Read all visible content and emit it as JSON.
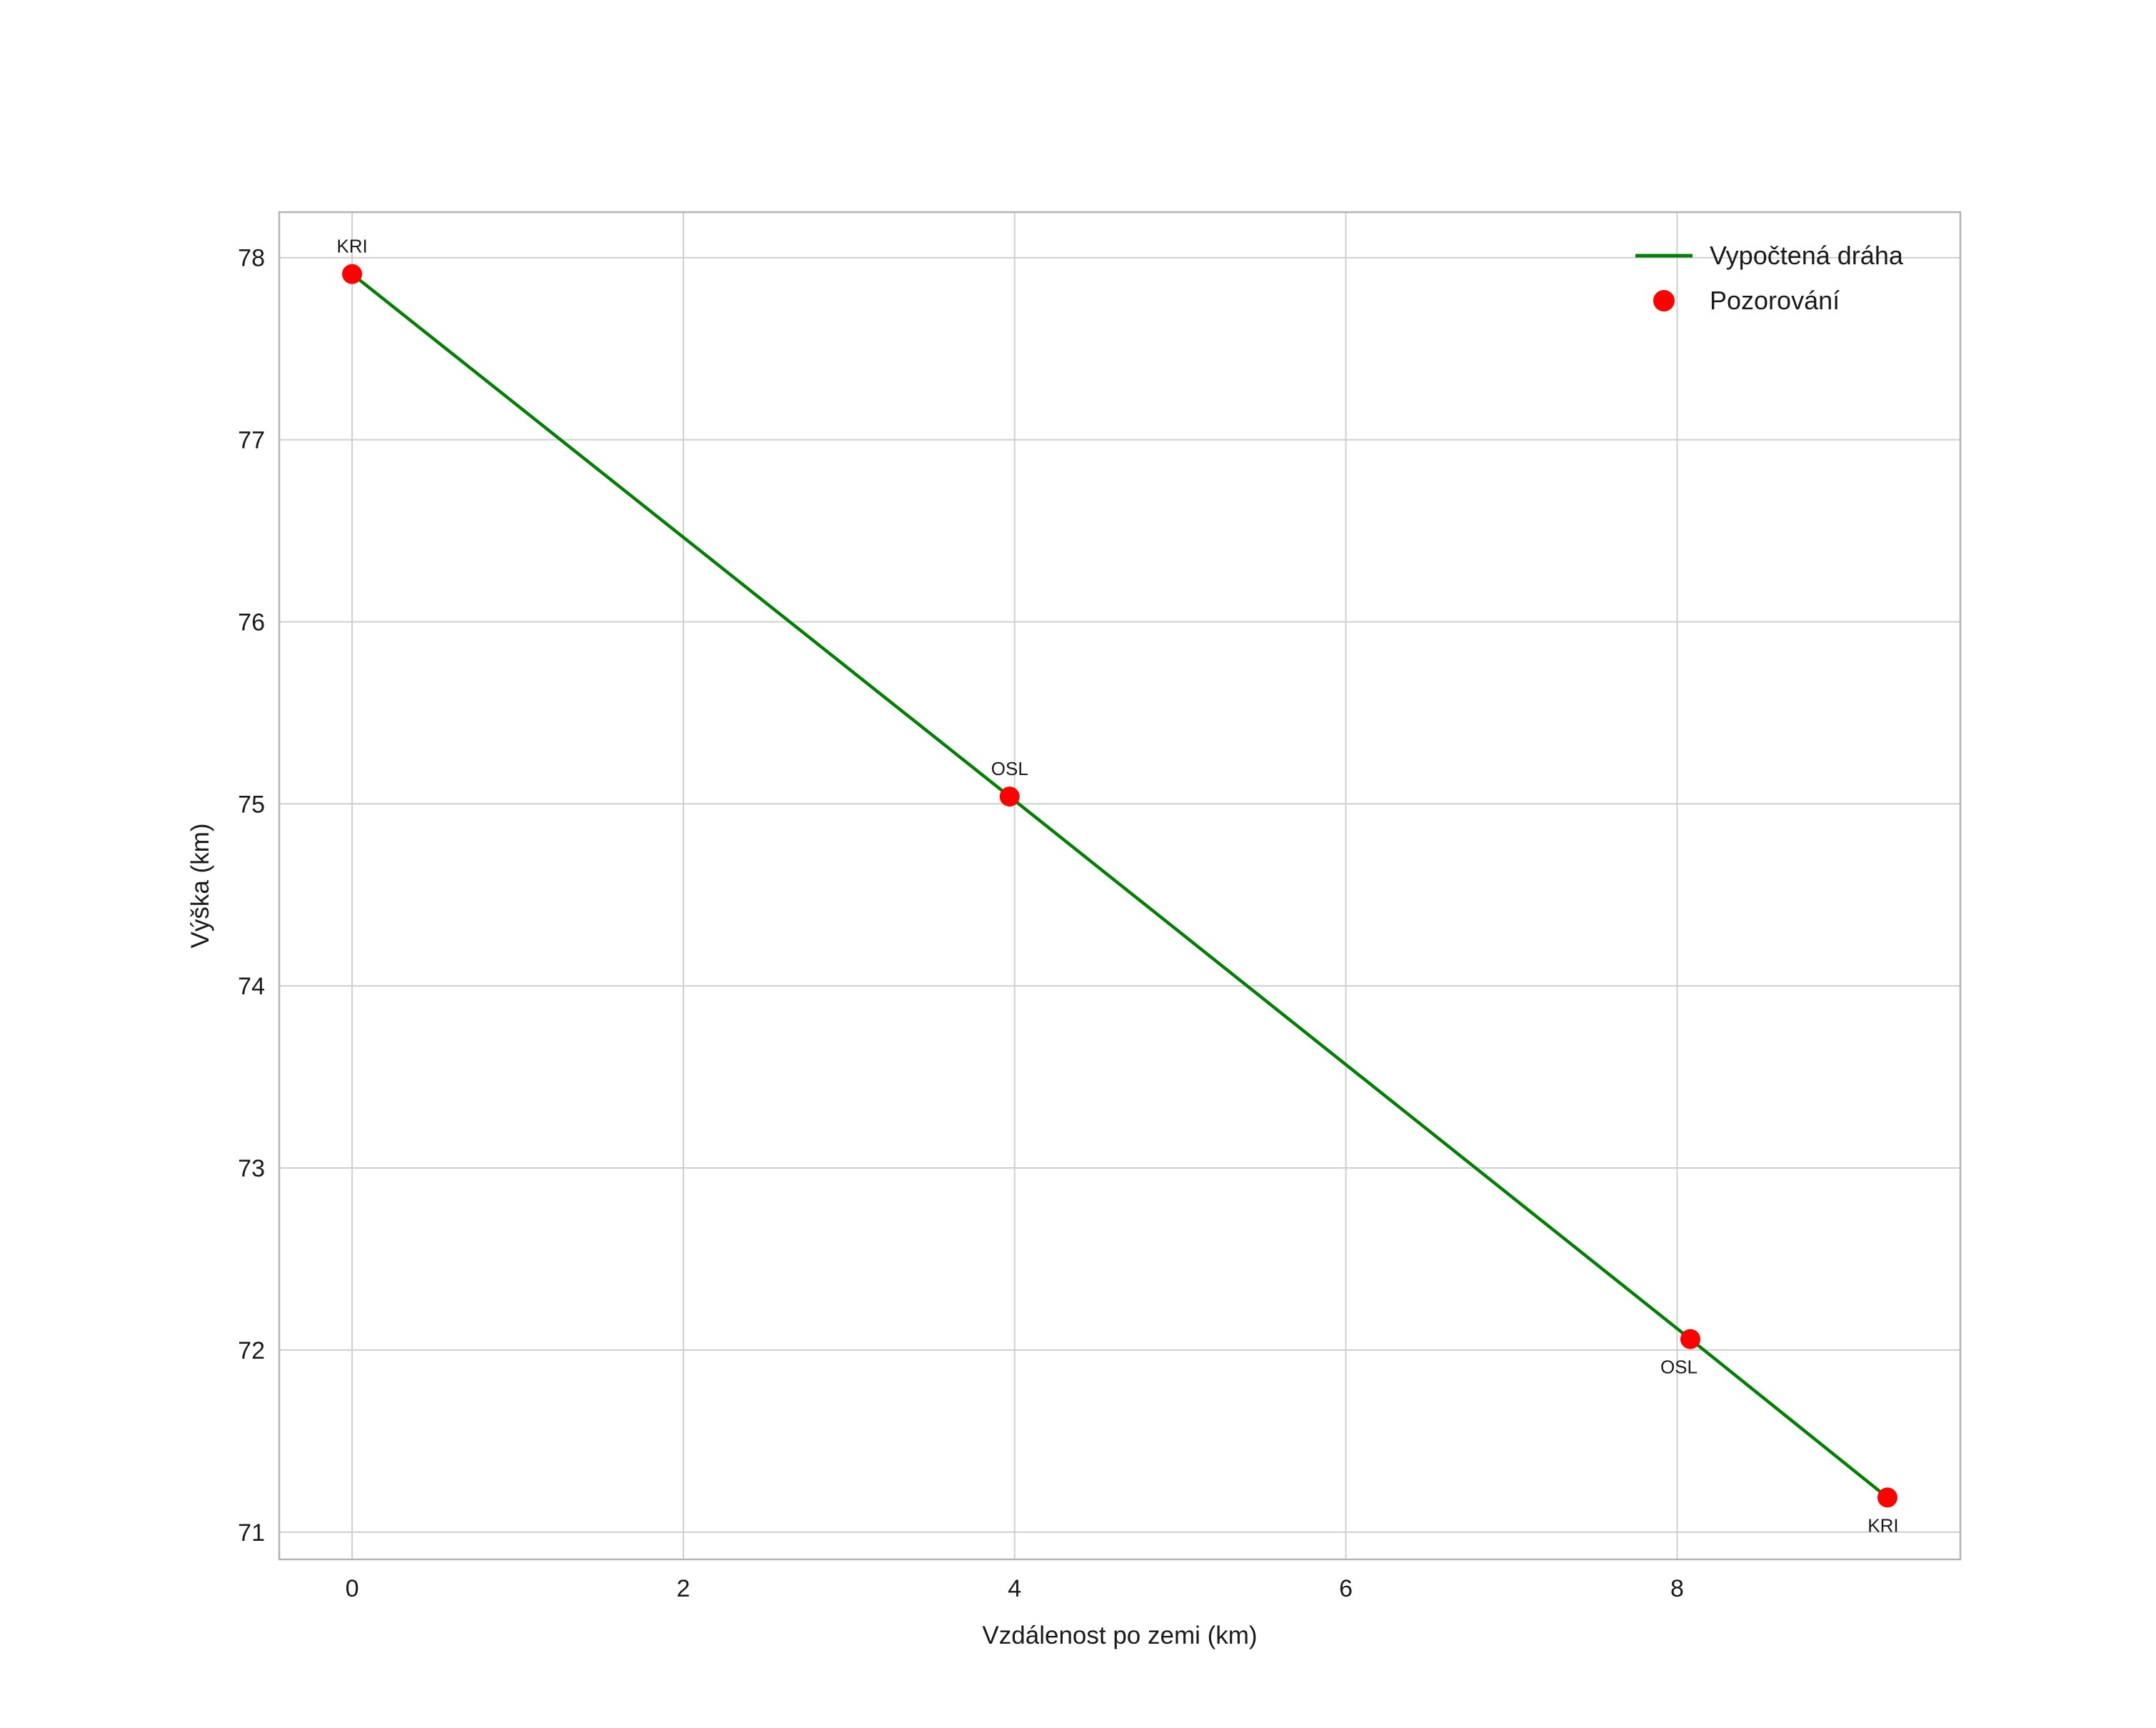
{
  "chart_data": {
    "type": "line",
    "title": "",
    "xlabel": "Vzdálenost po zemi (km)",
    "ylabel": "Výška (km)",
    "xlim": [
      -0.44,
      9.71
    ],
    "ylim": [
      70.85,
      78.25
    ],
    "xticks": [
      0,
      2,
      4,
      6,
      8
    ],
    "yticks": [
      71,
      72,
      73,
      74,
      75,
      76,
      77,
      78
    ],
    "grid": true,
    "background": "#ffffff",
    "colors": {
      "grid": "#cfcfcf",
      "frame": "#b3b3b3",
      "text": "#1a1a1a"
    },
    "legend": {
      "position": "upper-right",
      "entries": [
        {
          "label": "Vypočtená dráha",
          "type": "line",
          "color": "#008000"
        },
        {
          "label": "Pozorování",
          "type": "marker",
          "color": "#ff0000"
        }
      ]
    },
    "series": [
      {
        "name": "Vypočtená dráha",
        "type": "line",
        "color": "#008000",
        "x": [
          0.0,
          3.97,
          8.08,
          9.27
        ],
        "y": [
          77.91,
          75.04,
          72.06,
          71.19
        ]
      },
      {
        "name": "Pozorování",
        "type": "scatter",
        "color": "#ff0000",
        "points": [
          {
            "x": 0.0,
            "y": 77.91,
            "label": "KRI",
            "label_pos": "above",
            "dx": 0
          },
          {
            "x": 3.97,
            "y": 75.04,
            "label": "OSL",
            "label_pos": "above",
            "dx": 0
          },
          {
            "x": 8.08,
            "y": 72.06,
            "label": "OSL",
            "label_pos": "below",
            "dx": -16
          },
          {
            "x": 9.27,
            "y": 71.19,
            "label": "KRI",
            "label_pos": "below",
            "dx": -6
          }
        ]
      }
    ]
  }
}
